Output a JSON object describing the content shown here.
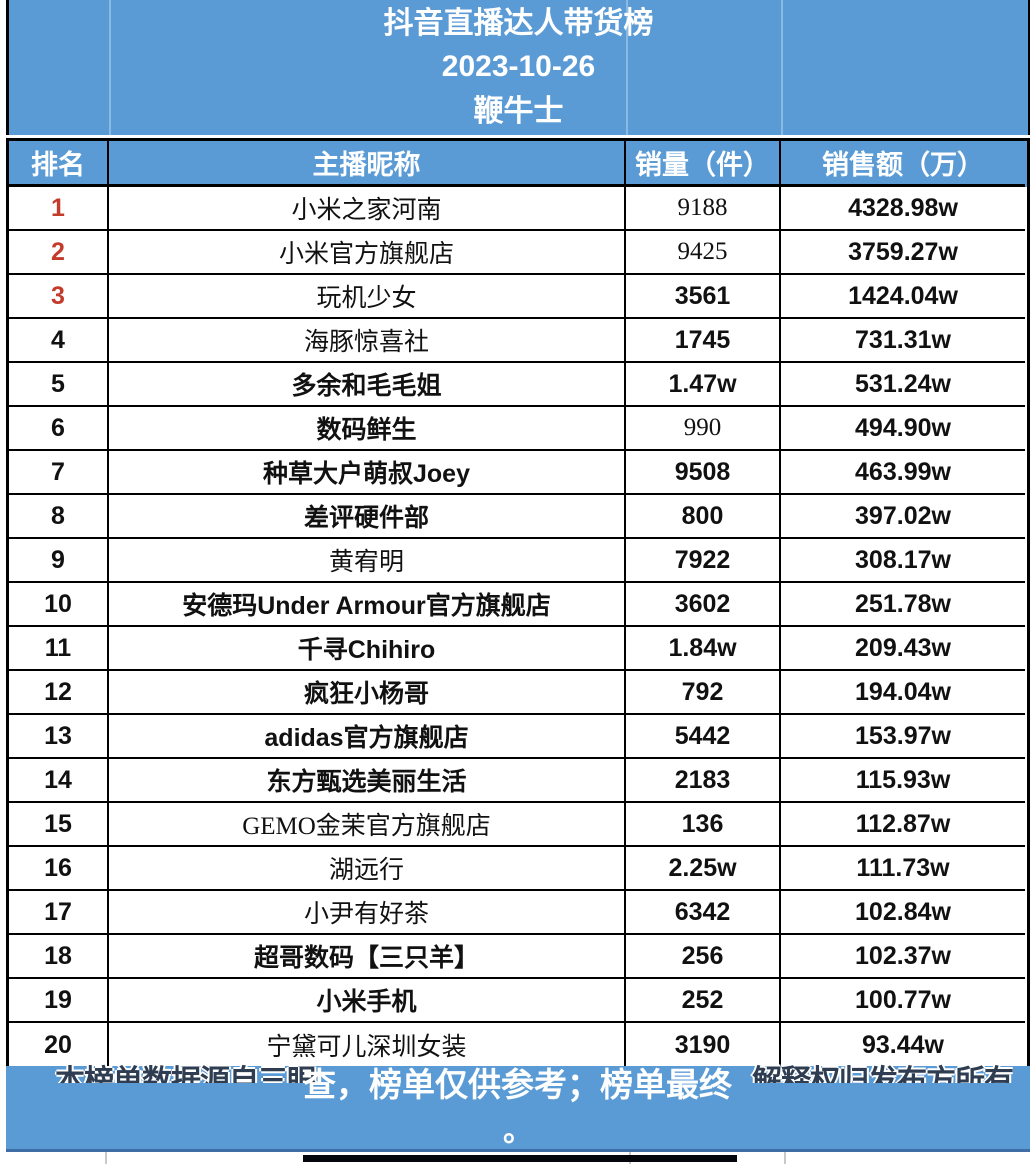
{
  "header": {
    "title": "抖音直播达人带货榜",
    "date": "2023-10-26",
    "source_name": "鞭牛士"
  },
  "chart_data": {
    "type": "table",
    "title": "抖音直播达人带货榜",
    "subtitle": "2023-10-26",
    "publisher": "鞭牛士",
    "columns": [
      "排名",
      "主播昵称",
      "销量（件）",
      "销售额（万）"
    ],
    "rows": [
      {
        "rank": 1,
        "name": "小米之家河南",
        "volume": "9188",
        "sales": "4328.98w"
      },
      {
        "rank": 2,
        "name": "小米官方旗舰店",
        "volume": "9425",
        "sales": "3759.27w"
      },
      {
        "rank": 3,
        "name": "玩机少女",
        "volume": "3561",
        "sales": "1424.04w"
      },
      {
        "rank": 4,
        "name": "海豚惊喜社",
        "volume": "1745",
        "sales": "731.31w"
      },
      {
        "rank": 5,
        "name": "多余和毛毛姐",
        "volume": "1.47w",
        "sales": "531.24w"
      },
      {
        "rank": 6,
        "name": "数码鲜生",
        "volume": "990",
        "sales": "494.90w"
      },
      {
        "rank": 7,
        "name": "种草大户萌叔Joey",
        "volume": "9508",
        "sales": "463.99w"
      },
      {
        "rank": 8,
        "name": "差评硬件部",
        "volume": "800",
        "sales": "397.02w"
      },
      {
        "rank": 9,
        "name": "黄宥明",
        "volume": "7922",
        "sales": "308.17w"
      },
      {
        "rank": 10,
        "name": "安德玛Under Armour官方旗舰店",
        "volume": "3602",
        "sales": "251.78w"
      },
      {
        "rank": 11,
        "name": "千寻Chihiro",
        "volume": "1.84w",
        "sales": "209.43w"
      },
      {
        "rank": 12,
        "name": "疯狂小杨哥",
        "volume": "792",
        "sales": "194.04w"
      },
      {
        "rank": 13,
        "name": "adidas官方旗舰店",
        "volume": "5442",
        "sales": "153.97w"
      },
      {
        "rank": 14,
        "name": "东方甄选美丽生活",
        "volume": "2183",
        "sales": "115.93w"
      },
      {
        "rank": 15,
        "name": "GEMO金茉官方旗舰店",
        "volume": "136",
        "sales": "112.87w"
      },
      {
        "rank": 16,
        "name": "湖远行",
        "volume": "2.25w",
        "sales": "111.73w"
      },
      {
        "rank": 17,
        "name": "小尹有好茶",
        "volume": "6342",
        "sales": "102.84w"
      },
      {
        "rank": 18,
        "name": "超哥数码【三只羊】",
        "volume": "256",
        "sales": "102.37w"
      },
      {
        "rank": 19,
        "name": "小米手机",
        "volume": "252",
        "sales": "100.77w"
      },
      {
        "rank": 20,
        "name": "宁黛可儿深圳女装",
        "volume": "3190",
        "sales": "93.44w"
      }
    ]
  },
  "row_styles": {
    "red_ranks": [
      1,
      2,
      3
    ],
    "name_serif": [
      1,
      2,
      3,
      4,
      9,
      15,
      16,
      17,
      20
    ],
    "vol_serif": [
      1,
      2,
      6
    ]
  },
  "footer": {
    "ghost_left": "本榜单数据源自三眼",
    "highlight": "查，榜单仅供参考；榜单最终",
    "ghost_right": "解释权归发布方所有",
    "period": "。"
  },
  "colors": {
    "banner_blue": "#5B9BD5",
    "rank_red": "#C23B2B",
    "border_black": "#000000"
  }
}
